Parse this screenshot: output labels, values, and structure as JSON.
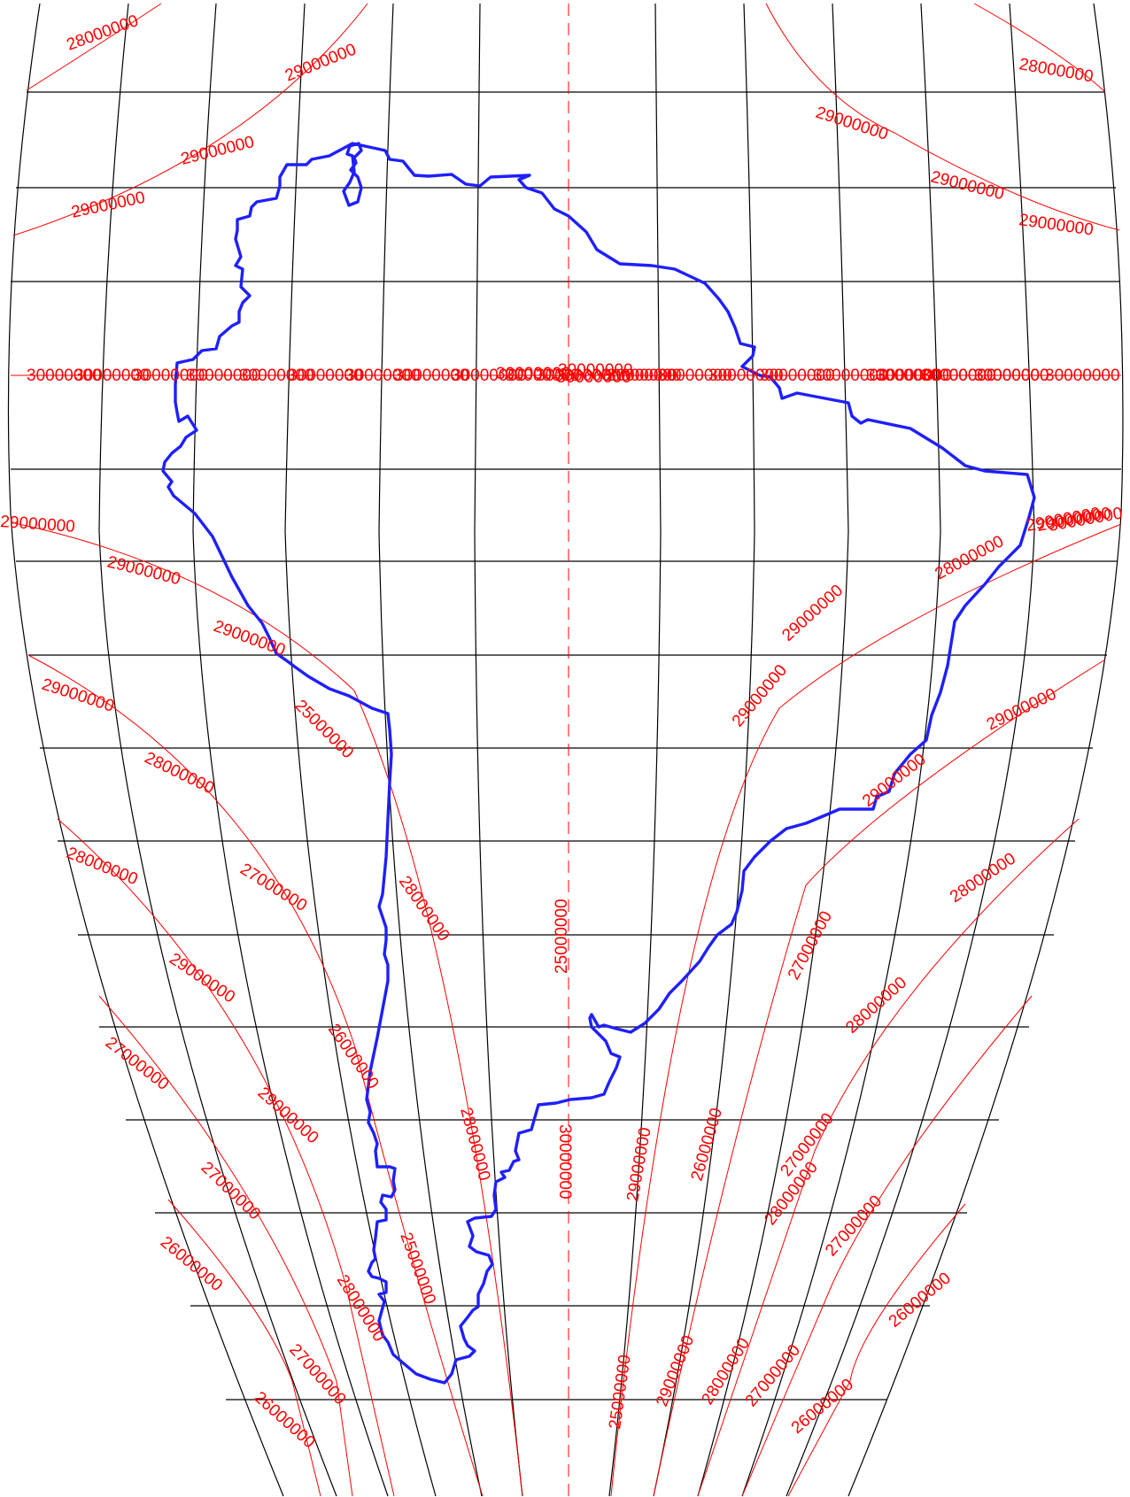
{
  "map": {
    "graticule_color": "#000000",
    "contour_color": "#ff0000",
    "coastline_color": "#1f1fff",
    "coastline_name": "South America outline"
  },
  "contour_labels": [
    "28000000",
    "29000000",
    "29000000",
    "29000000",
    "28000000",
    "29000000",
    "29000000",
    "29000000",
    "30000000",
    "30000000",
    "30000000",
    "30000000",
    "30000000",
    "30000000",
    "30000000",
    "30000000",
    "30000000",
    "30000000",
    "30000000",
    "30000000",
    "30000000",
    "30000000",
    "30000000",
    "30000000",
    "30000000",
    "30000000",
    "30000000",
    "30000000",
    "30000000",
    "30000000",
    "30000000",
    "30000000",
    "30000000",
    "30000000",
    "30000000",
    "29000000",
    "29000000",
    "29000000",
    "29000000",
    "28000000",
    "28000000",
    "27000000",
    "28000000",
    "29000000",
    "27000000",
    "26000000",
    "28000000",
    "29000000",
    "27000000",
    "26000000",
    "25000000",
    "28000000",
    "27000000",
    "26000000",
    "25000000",
    "29000000",
    "29000000",
    "29000000",
    "28000000",
    "29000000",
    "29000000",
    "28000000",
    "27000000",
    "28000000",
    "27000000",
    "26000000",
    "29000000",
    "28000000",
    "27000000",
    "26000000",
    "25000000",
    "29000000",
    "28000000",
    "27000000",
    "26000000",
    "25000000",
    "30000000",
    "30000000",
    "29000000",
    "29000000"
  ]
}
